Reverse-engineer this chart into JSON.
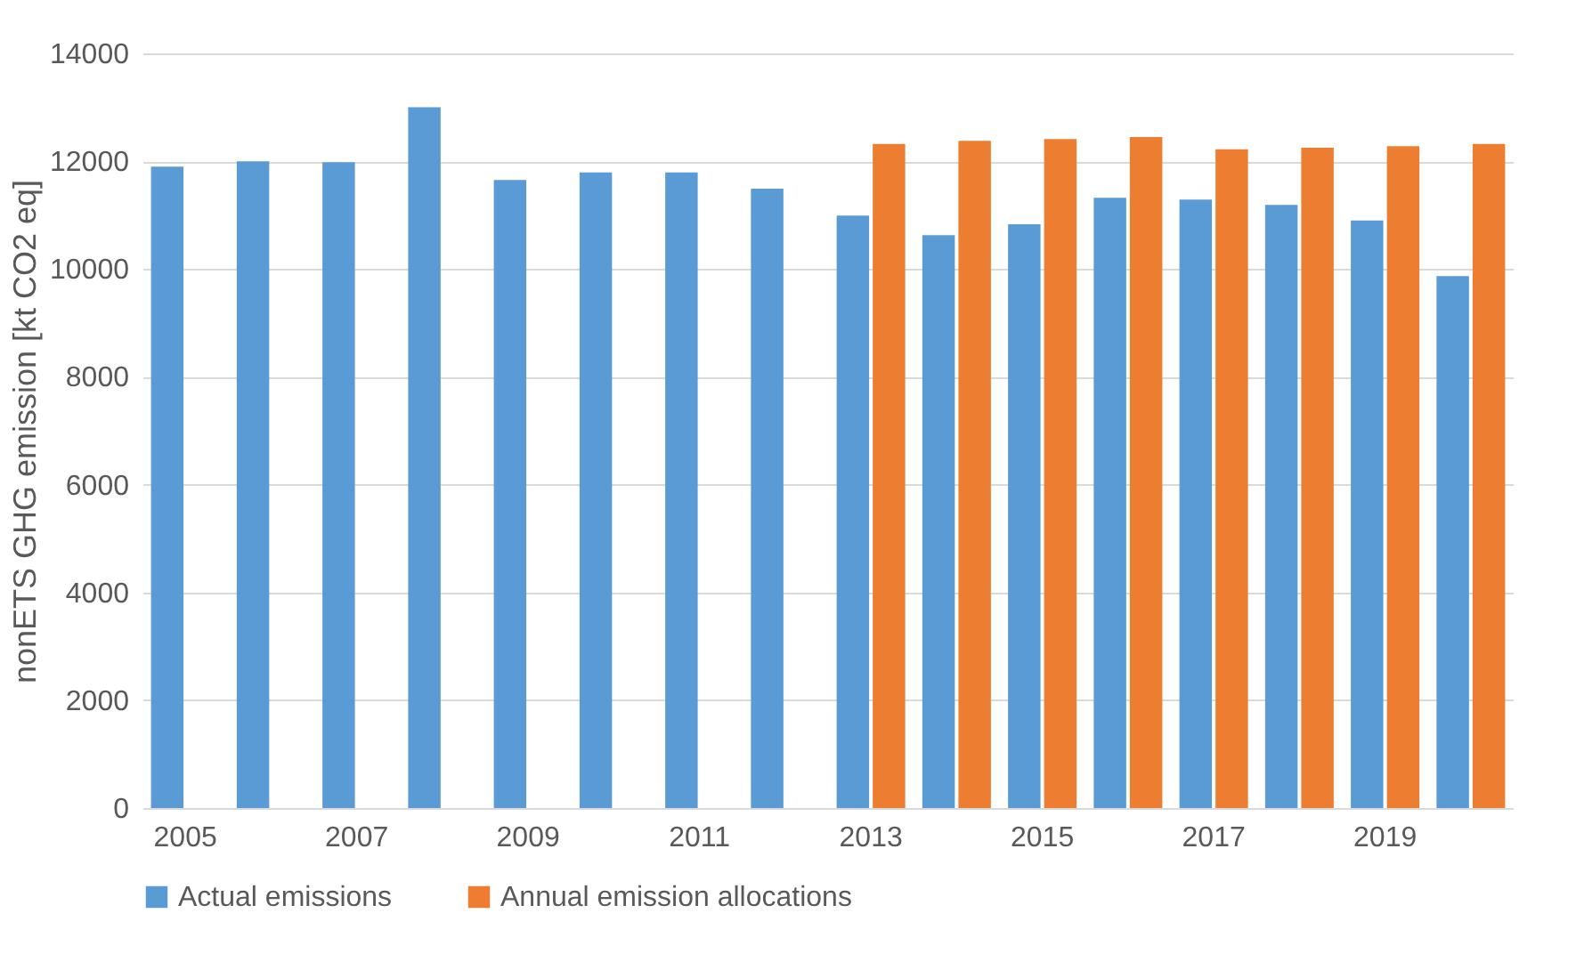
{
  "chart_data": {
    "type": "bar",
    "ylabel": "nonETS GHG emission [kt CO2 eq]",
    "categories": [
      "2005",
      null,
      "2007",
      null,
      "2009",
      null,
      "2011",
      null,
      "2013",
      null,
      "2015",
      null,
      "2017",
      null,
      "2019",
      null
    ],
    "series": [
      {
        "name": "Actual emissions",
        "color": "#5b9bd5",
        "values": [
          11900,
          12000,
          11980,
          13000,
          11650,
          11790,
          11790,
          11490,
          10990,
          10630,
          10830,
          11320,
          11290,
          11190,
          10900,
          9870
        ]
      },
      {
        "name": "Annual emission allocations",
        "color": "#ed7d31",
        "values": [
          null,
          null,
          null,
          null,
          null,
          null,
          null,
          null,
          12320,
          12380,
          12410,
          12450,
          12220,
          12250,
          12280,
          12320
        ]
      }
    ],
    "ylim": [
      0,
      14000
    ],
    "yticks": [
      0,
      2000,
      4000,
      6000,
      8000,
      10000,
      12000,
      14000
    ],
    "grid": "y",
    "legend": "bottom"
  }
}
